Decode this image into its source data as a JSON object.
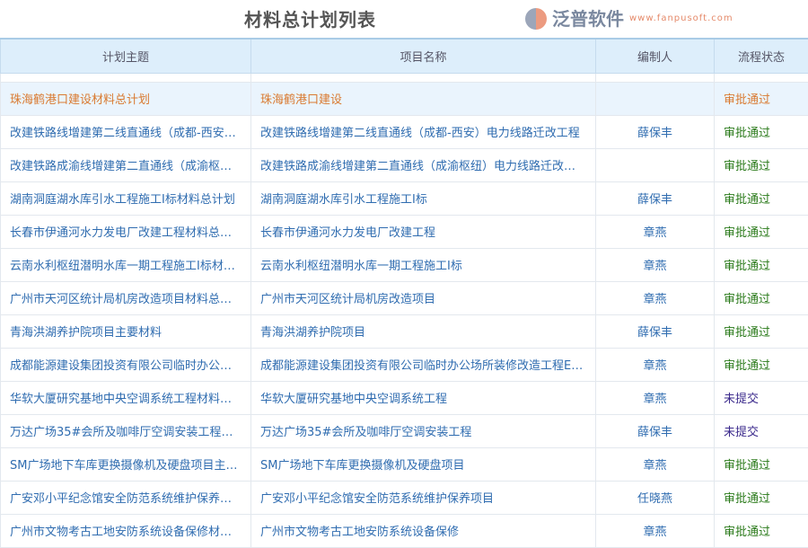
{
  "title": "材料总计划列表",
  "columns": [
    "计划主题",
    "项目名称",
    "编制人",
    "流程状态"
  ],
  "rows": [
    {
      "plan": "珠海鹤港口建设材料总计划",
      "project": "珠海鹤港口建设",
      "author": "",
      "status": "审批通过",
      "selected": true
    },
    {
      "plan": "改建铁路线增建第二线直通线（成都-西安…",
      "project": "改建铁路线增建第二线直通线（成都-西安）电力线路迁改工程",
      "author": "薛保丰",
      "status": "审批通过"
    },
    {
      "plan": "改建铁路成渝线增建第二直通线（成渝枢…",
      "project": "改建铁路成渝线增建第二直通线（成渝枢纽）电力线路迁改…",
      "author": "",
      "status": "审批通过"
    },
    {
      "plan": "湖南洞庭湖水库引水工程施工I标材料总计划",
      "project": "湖南洞庭湖水库引水工程施工I标",
      "author": "薛保丰",
      "status": "审批通过"
    },
    {
      "plan": "长春市伊通河水力发电厂改建工程材料总…",
      "project": "长春市伊通河水力发电厂改建工程",
      "author": "章燕",
      "status": "审批通过"
    },
    {
      "plan": "云南水利枢纽潜明水库一期工程施工I标材…",
      "project": "云南水利枢纽潜明水库一期工程施工I标",
      "author": "章燕",
      "status": "审批通过"
    },
    {
      "plan": "广州市天河区统计局机房改造项目材料总…",
      "project": "广州市天河区统计局机房改造项目",
      "author": "章燕",
      "status": "审批通过"
    },
    {
      "plan": "青海洪湖养护院项目主要材料",
      "project": "青海洪湖养护院项目",
      "author": "薛保丰",
      "status": "审批通过"
    },
    {
      "plan": "成都能源建设集团投资有限公司临时办公…",
      "project": "成都能源建设集团投资有限公司临时办公场所装修改造工程E…",
      "author": "章燕",
      "status": "审批通过"
    },
    {
      "plan": "华软大厦研究基地中央空调系统工程材料…",
      "project": "华软大厦研究基地中央空调系统工程",
      "author": "章燕",
      "status": "未提交"
    },
    {
      "plan": "万达广场35#会所及咖啡厅空调安装工程材…",
      "project": "万达广场35#会所及咖啡厅空调安装工程",
      "author": "薛保丰",
      "status": "未提交"
    },
    {
      "plan": "SM广场地下车库更换摄像机及硬盘项目主…",
      "project": "SM广场地下车库更换摄像机及硬盘项目",
      "author": "章燕",
      "status": "审批通过"
    },
    {
      "plan": "广安邓小平纪念馆安全防范系统维护保养…",
      "project": "广安邓小平纪念馆安全防范系统维护保养项目",
      "author": "任晓燕",
      "status": "审批通过"
    },
    {
      "plan": "广州市文物考古工地安防系统设备保修材…",
      "project": "广州市文物考古工地安防系统设备保修",
      "author": "章燕",
      "status": "审批通过"
    }
  ],
  "watermark": {
    "name": "泛普软件",
    "url": "www.fanpusoft.com"
  },
  "colors": {
    "approved": "#2a7a1a",
    "not_submitted": "#3b2a8c",
    "link": "#2f6cb0",
    "selected": "#d97a30"
  }
}
